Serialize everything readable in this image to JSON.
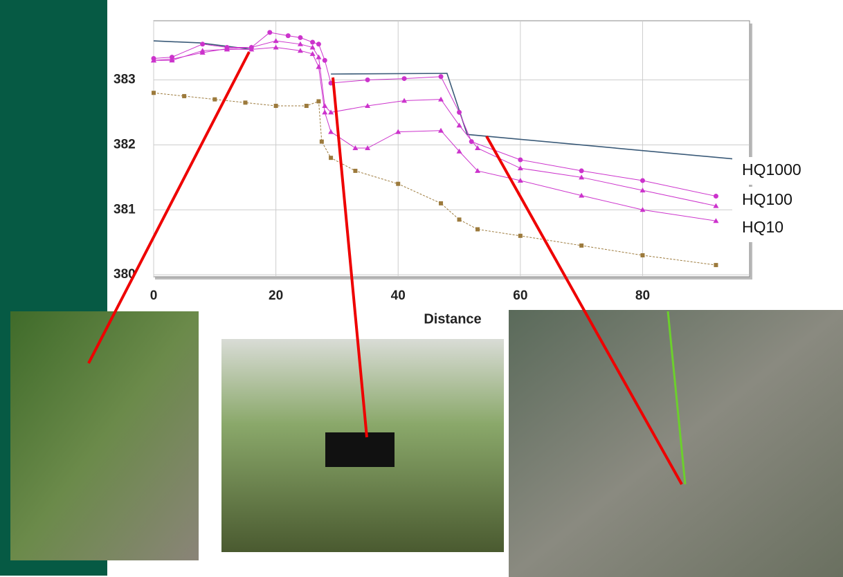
{
  "chart_data": {
    "type": "line",
    "xlabel": "Distance",
    "xlim": [
      0,
      97.5
    ],
    "ylim": [
      379.97,
      383.91
    ],
    "xticks": [
      0,
      20,
      40,
      60,
      80
    ],
    "yticks": [
      380,
      381,
      382,
      383
    ],
    "grid": true,
    "series": [
      {
        "color": "#3a5a78",
        "marker": "none",
        "x": [
          0,
          7.5,
          16,
          22,
          29,
          48,
          51.3,
          96.4
        ],
        "values": [
          383.6,
          383.57,
          383.47,
          null,
          383.09,
          383.1,
          382.16,
          381.77
        ]
      },
      {
        "name": "HQ1000",
        "color": "#cc33cc",
        "marker": "circle",
        "x": [
          0,
          3,
          8,
          12,
          16,
          19,
          22,
          24,
          26,
          27,
          28,
          29,
          35,
          41,
          47,
          50,
          52,
          60,
          70,
          80,
          92
        ],
        "values": [
          383.33,
          383.35,
          383.55,
          383.5,
          383.5,
          383.73,
          383.68,
          383.65,
          383.58,
          383.55,
          383.3,
          382.95,
          383.0,
          383.02,
          383.05,
          382.5,
          382.05,
          381.77,
          381.6,
          381.45,
          381.21
        ]
      },
      {
        "name": "HQ100",
        "color": "#cc33cc",
        "marker": "triangle",
        "x": [
          0,
          3,
          8,
          12,
          16,
          20,
          24,
          26,
          27,
          28,
          29,
          35,
          41,
          47,
          50,
          53,
          60,
          70,
          80,
          92
        ],
        "values": [
          383.3,
          383.32,
          383.42,
          383.48,
          383.5,
          383.6,
          383.55,
          383.5,
          383.35,
          382.6,
          382.5,
          382.6,
          382.68,
          382.7,
          382.3,
          381.95,
          381.64,
          381.5,
          381.3,
          381.06
        ]
      },
      {
        "name": "HQ10",
        "color": "#cc33cc",
        "marker": "triangle",
        "x": [
          0,
          3,
          8,
          12,
          16,
          20,
          24,
          26,
          27,
          28,
          29,
          33,
          35,
          40,
          47,
          50,
          53,
          60,
          70,
          80,
          92
        ],
        "values": [
          383.3,
          383.3,
          383.45,
          383.47,
          383.47,
          383.5,
          383.45,
          383.4,
          383.2,
          382.5,
          382.2,
          381.95,
          381.95,
          382.2,
          382.22,
          381.9,
          381.6,
          381.45,
          381.22,
          381.0,
          380.83
        ]
      },
      {
        "color": "#9c7a3c",
        "marker": "square",
        "x": [
          0,
          5,
          10,
          15,
          20,
          25,
          27,
          27.5,
          29,
          33,
          40,
          47,
          50,
          53,
          60,
          70,
          80,
          92
        ],
        "values": [
          382.8,
          382.75,
          382.7,
          382.65,
          382.6,
          382.6,
          382.67,
          382.05,
          381.8,
          381.6,
          381.4,
          381.1,
          380.85,
          380.7,
          380.6,
          380.45,
          380.3,
          380.15
        ]
      }
    ]
  }
}
